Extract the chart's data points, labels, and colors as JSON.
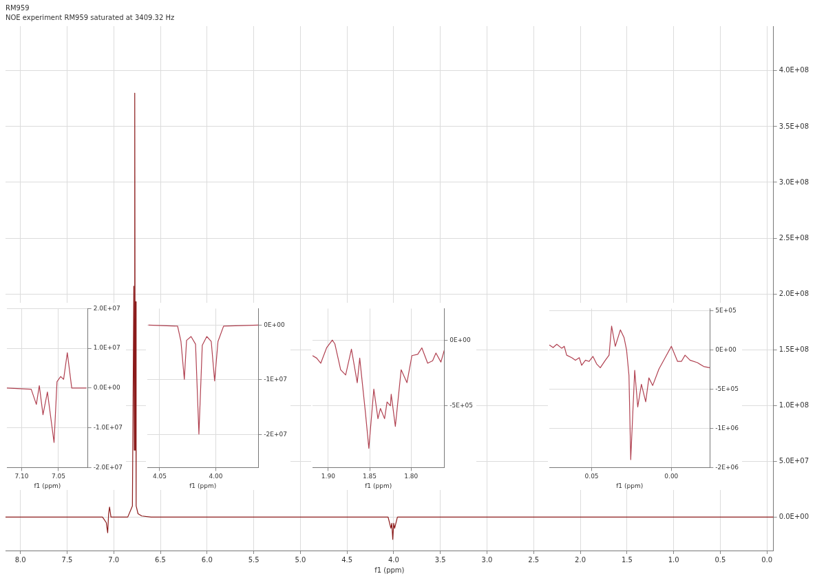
{
  "chart_data": [
    {
      "type": "line",
      "title": "RM959",
      "subtitle": "NOE experiment RM959 saturated at 3409.32 Hz",
      "xlabel": "f1 (ppm)",
      "grid": true,
      "legend": false,
      "marker": "none",
      "xlim": [
        8.16,
        -0.07
      ],
      "xticks": [
        {
          "value": 8,
          "label": "8.0"
        },
        {
          "value": 7.5,
          "label": "7.5"
        },
        {
          "value": 7,
          "label": "7.0"
        },
        {
          "value": 6.5,
          "label": "6.5"
        },
        {
          "value": 6,
          "label": "6.0"
        },
        {
          "value": 5.5,
          "label": "5.5"
        },
        {
          "value": 5,
          "label": "5.0"
        },
        {
          "value": 4.5,
          "label": "4.5"
        },
        {
          "value": 4,
          "label": "4.0"
        },
        {
          "value": 3.5,
          "label": "3.5"
        },
        {
          "value": 3,
          "label": "3.0"
        },
        {
          "value": 2.5,
          "label": "2.5"
        },
        {
          "value": 2,
          "label": "2.0"
        },
        {
          "value": 1.5,
          "label": "1.5"
        },
        {
          "value": 1,
          "label": "1.0"
        },
        {
          "value": 0.5,
          "label": "0.5"
        },
        {
          "value": 0,
          "label": "0.0"
        }
      ],
      "ylim": [
        -30000000,
        440000000
      ],
      "yticks": [
        {
          "value": 0,
          "label": "0.0E+00"
        },
        {
          "value": 50000000,
          "label": "5.0E+07"
        },
        {
          "value": 100000000,
          "label": "1.0E+08"
        },
        {
          "value": 150000000,
          "label": "1.5E+08"
        },
        {
          "value": 200000000,
          "label": "2.0E+08"
        },
        {
          "value": 250000000,
          "label": "2.5E+08"
        },
        {
          "value": 300000000,
          "label": "3.0E+08"
        },
        {
          "value": 350000000,
          "label": "3.5E+08"
        },
        {
          "value": 400000000,
          "label": "4.0E+08"
        }
      ],
      "series": [
        {
          "color": "#8b1a1a",
          "x": [
            8.16,
            7.12,
            7.08,
            7.065,
            7.055,
            7.045,
            7.03,
            6.85,
            6.8,
            6.785,
            6.78,
            6.775,
            6.77,
            6.765,
            6.76,
            6.74,
            6.7,
            6.6,
            4.06,
            4.03,
            4.02,
            4.01,
            4.0,
            3.99,
            3.96,
            -0.07
          ],
          "values": [
            0,
            0,
            -5000000,
            -14000000,
            3000000,
            9000000,
            0,
            0,
            10000000,
            207000000,
            60000000,
            380000000,
            60000000,
            193000000,
            10000000,
            3000000,
            1000000,
            0,
            0,
            -10000000,
            -5500000,
            -20000000,
            -5500000,
            -10000000,
            0,
            0
          ]
        }
      ]
    },
    {
      "type": "line",
      "xlabel": "f1 (ppm)",
      "grid": true,
      "legend": false,
      "marker": "none",
      "xlim": [
        7.12,
        7.01
      ],
      "xticks": [
        {
          "value": 7.1,
          "label": "7.10"
        },
        {
          "value": 7.05,
          "label": "7.05"
        }
      ],
      "ylim": [
        -20000000,
        20000000
      ],
      "yticks": [
        {
          "value": 20000000,
          "label": "2.0E+07"
        },
        {
          "value": 10000000,
          "label": "1.0E+07"
        },
        {
          "value": 0,
          "label": "0.0E+00"
        },
        {
          "value": -10000000,
          "label": "-1.0E+07"
        },
        {
          "value": -20000000,
          "label": "-2.0E+07"
        }
      ],
      "series": [
        {
          "color": "#b04050",
          "x": [
            7.12,
            7.087,
            7.08,
            7.076,
            7.071,
            7.065,
            7.056,
            7.052,
            7.047,
            7.043,
            7.038,
            7.032,
            7.012
          ],
          "values": [
            0,
            -300000,
            -4100000,
            600000,
            -6700000,
            -1000000,
            -13700000,
            1600000,
            2900000,
            2200000,
            8900000,
            0,
            0
          ]
        }
      ]
    },
    {
      "type": "line",
      "xlabel": "f1 (ppm)",
      "grid": true,
      "legend": false,
      "marker": "none",
      "xlim": [
        4.061,
        3.962
      ],
      "xticks": [
        {
          "value": 4.05,
          "label": "4.05"
        },
        {
          "value": 4,
          "label": "4.00"
        }
      ],
      "ylim": [
        -26000000,
        3000000
      ],
      "yticks": [
        {
          "value": 0,
          "label": "0E+00"
        },
        {
          "value": -10000000,
          "label": "-1E+07"
        },
        {
          "value": -20000000,
          "label": "-2E+07"
        }
      ],
      "series": [
        {
          "color": "#b04050",
          "x": [
            4.06,
            4.034,
            4.031,
            4.028,
            4.026,
            4.022,
            4.018,
            4.015,
            4.012,
            4.008,
            4.004,
            4.001,
            3.998,
            3.993,
            3.962
          ],
          "values": [
            0,
            -200000,
            -3000000,
            -9900000,
            -2800000,
            -2100000,
            -3500000,
            -19900000,
            -3700000,
            -2100000,
            -3000000,
            -10200000,
            -3000000,
            -200000,
            0
          ]
        }
      ]
    },
    {
      "type": "line",
      "xlabel": "f1 (ppm)",
      "grid": true,
      "legend": false,
      "marker": "none",
      "xlim": [
        1.919,
        1.76
      ],
      "xticks": [
        {
          "value": 1.9,
          "label": "1.90"
        },
        {
          "value": 1.85,
          "label": "1.85"
        },
        {
          "value": 1.8,
          "label": "1.80"
        }
      ],
      "ylim": [
        -970000,
        240000
      ],
      "yticks": [
        {
          "value": 0,
          "label": "0E+00"
        },
        {
          "value": -500000,
          "label": "-5E+05"
        }
      ],
      "series": [
        {
          "color": "#b04050",
          "x": [
            1.919,
            1.914,
            1.909,
            1.902,
            1.895,
            1.892,
            1.885,
            1.879,
            1.872,
            1.865,
            1.862,
            1.855,
            1.851,
            1.845,
            1.84,
            1.837,
            1.832,
            1.829,
            1.825,
            1.824,
            1.819,
            1.812,
            1.805,
            1.799,
            1.792,
            1.787,
            1.78,
            1.774,
            1.77,
            1.764,
            1.76
          ],
          "values": [
            -118000,
            -137000,
            -176000,
            -59000,
            0,
            -29000,
            -226000,
            -265000,
            -69000,
            -324000,
            -137000,
            -559000,
            -824000,
            -373000,
            -598000,
            -520000,
            -598000,
            -471000,
            -500000,
            -412000,
            -657000,
            -226000,
            -324000,
            -118000,
            -108000,
            -59000,
            -176000,
            -157000,
            -98000,
            -167000,
            -78000
          ]
        }
      ]
    },
    {
      "type": "line",
      "xlabel": "f1 (ppm)",
      "grid": true,
      "legend": false,
      "marker": "none",
      "xlim": [
        0.0766,
        -0.0242
      ],
      "xticks": [
        {
          "value": 0.05,
          "label": "0.05"
        },
        {
          "value": 0,
          "label": "0.00"
        }
      ],
      "ylim": [
        -1500000,
        530000
      ],
      "yticks": [
        {
          "value": 500000,
          "label": "5E+05"
        },
        {
          "value": 0,
          "label": "0E+00"
        },
        {
          "value": -500000,
          "label": "-5E+05"
        },
        {
          "value": -1000000,
          "label": "-1E+06"
        },
        {
          "value": -1500000,
          "label": "-2E+06"
        }
      ],
      "series": [
        {
          "color": "#b04050",
          "x": [
            0.0766,
            0.0742,
            0.0719,
            0.0688,
            0.0672,
            0.0657,
            0.0625,
            0.0602,
            0.0578,
            0.0563,
            0.0539,
            0.0516,
            0.0492,
            0.0469,
            0.0446,
            0.0414,
            0.0391,
            0.0375,
            0.0352,
            0.032,
            0.0297,
            0.0281,
            0.0266,
            0.0255,
            0.023,
            0.0211,
            0.0188,
            0.0161,
            0.0141,
            0.0117,
            0.0078,
            0.0039,
            0,
            -0.0039,
            -0.0063,
            -0.0086,
            -0.0117,
            -0.0164,
            -0.0203,
            -0.0242
          ],
          "values": [
            65000,
            32000,
            74000,
            23000,
            48000,
            -65000,
            -97000,
            -129000,
            -97000,
            -194000,
            -129000,
            -145000,
            -81000,
            -177000,
            -226000,
            -129000,
            -65000,
            306000,
            48000,
            258000,
            161000,
            0,
            -323000,
            -1400000,
            -258000,
            -726000,
            -436000,
            -661000,
            -355000,
            -452000,
            -242000,
            -97000,
            48000,
            -145000,
            -145000,
            -65000,
            -129000,
            -161000,
            -210000,
            -226000
          ]
        }
      ]
    }
  ]
}
